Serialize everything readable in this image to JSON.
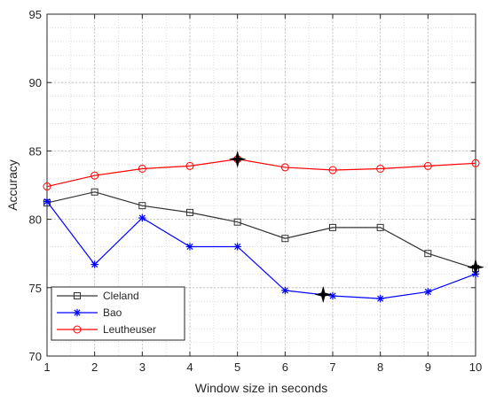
{
  "chart_data": {
    "type": "line",
    "xlabel": "Window size in seconds",
    "ylabel": "Accuracy",
    "xlim": [
      1,
      10
    ],
    "ylim": [
      70,
      95
    ],
    "x": [
      1,
      2,
      3,
      4,
      5,
      6,
      7,
      8,
      9,
      10
    ],
    "x_ticks": [
      "1",
      "2",
      "3",
      "4",
      "5",
      "6",
      "7",
      "8",
      "9",
      "10"
    ],
    "y_ticks": [
      "70",
      "75",
      "80",
      "85",
      "90",
      "95"
    ],
    "y_tick_values": [
      70,
      75,
      80,
      85,
      90,
      95
    ],
    "grid": true,
    "minor_grid": true,
    "legend_position": "bottom-left",
    "series": [
      {
        "name": "Cleland",
        "color": "#333333",
        "marker": "square",
        "values": [
          81.2,
          82.0,
          81.0,
          80.5,
          79.8,
          78.6,
          79.4,
          79.4,
          77.5,
          76.4
        ]
      },
      {
        "name": "Bao",
        "color": "#0000ff",
        "marker": "star",
        "values": [
          81.3,
          76.7,
          80.1,
          78.0,
          78.0,
          74.8,
          74.4,
          74.2,
          74.7,
          76.0
        ]
      },
      {
        "name": "Leutheuser",
        "color": "#ff0000",
        "marker": "circle",
        "values": [
          82.4,
          83.2,
          83.7,
          83.9,
          84.4,
          83.8,
          83.6,
          83.7,
          83.9,
          84.1
        ]
      }
    ],
    "highlights": [
      {
        "x": 5,
        "y": 84.4
      },
      {
        "x": 6.8,
        "y": 74.5
      },
      {
        "x": 10,
        "y": 76.5
      }
    ]
  }
}
